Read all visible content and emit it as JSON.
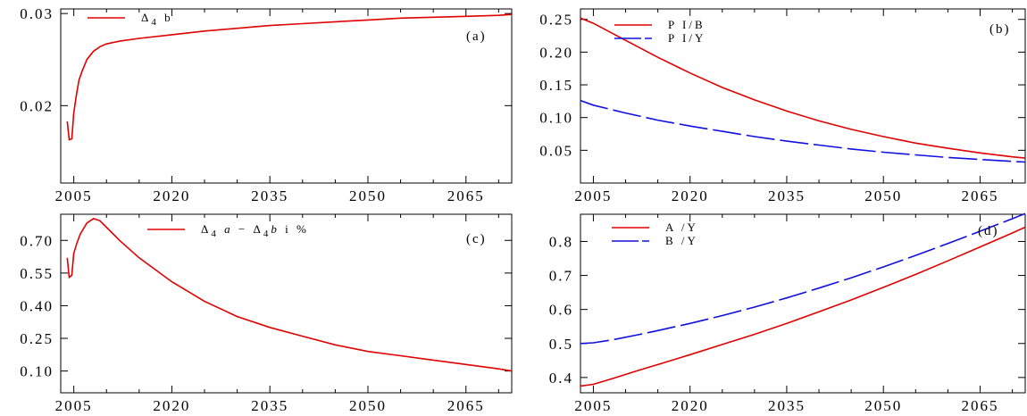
{
  "chart_data": [
    {
      "type": "line",
      "panel_label": "(a)",
      "xlim": [
        2003,
        2072
      ],
      "ylim": [
        0.0116,
        0.0305
      ],
      "x_ticks": [
        2005,
        2020,
        2035,
        2050,
        2065
      ],
      "x_tick_labels": [
        "2005",
        "2020",
        "2035",
        "2050",
        "2065"
      ],
      "y_ticks": [
        0.02,
        0.03
      ],
      "y_tick_labels": [
        "0.02",
        "0.03"
      ],
      "series": [
        {
          "name": "Δ₄b",
          "legend_main": "Δ",
          "legend_sub": "4",
          "legend_tail": "b",
          "color": "#e00000",
          "dash": "solid",
          "x": [
            2004.0,
            2004.3,
            2004.7,
            2005.0,
            2005.4,
            2005.8,
            2006.3,
            2007.0,
            2008.0,
            2009.0,
            2010.0,
            2012.0,
            2015.0,
            2020.0,
            2025.0,
            2030.0,
            2035.0,
            2040.0,
            2045.0,
            2050.0,
            2055.0,
            2060.0,
            2065.0,
            2070.0,
            2072.0
          ],
          "y": [
            0.0183,
            0.0163,
            0.0164,
            0.0192,
            0.0212,
            0.0228,
            0.0238,
            0.025,
            0.0259,
            0.0264,
            0.0267,
            0.027,
            0.0273,
            0.0277,
            0.0281,
            0.0284,
            0.0287,
            0.0289,
            0.0291,
            0.0293,
            0.0295,
            0.0296,
            0.0297,
            0.0298,
            0.0299
          ]
        }
      ],
      "legend": "top-left"
    },
    {
      "type": "line",
      "panel_label": "(b)",
      "xlim": [
        2003,
        2072
      ],
      "ylim": [
        0.0,
        0.266
      ],
      "x_ticks": [
        2005,
        2020,
        2035,
        2050,
        2065
      ],
      "x_tick_labels": [
        "2005",
        "2020",
        "2035",
        "2050",
        "2065"
      ],
      "y_ticks": [
        0.05,
        0.1,
        0.15,
        0.2,
        0.25
      ],
      "y_tick_labels": [
        "0.05",
        "0.10",
        "0.15",
        "0.20",
        "0.25"
      ],
      "series": [
        {
          "name": "PI/B",
          "legend_main": "P I/B",
          "color": "#e00000",
          "dash": "solid",
          "x": [
            2003,
            2005,
            2010,
            2015,
            2020,
            2025,
            2030,
            2035,
            2040,
            2045,
            2050,
            2055,
            2060,
            2065,
            2070,
            2072
          ],
          "y": [
            0.252,
            0.244,
            0.218,
            0.192,
            0.168,
            0.146,
            0.127,
            0.11,
            0.095,
            0.082,
            0.071,
            0.061,
            0.053,
            0.046,
            0.04,
            0.038
          ]
        },
        {
          "name": "PI/Y",
          "legend_main": "P I/Y",
          "color": "#1010e0",
          "dash": "long-dash",
          "x": [
            2003,
            2005,
            2010,
            2015,
            2020,
            2025,
            2030,
            2035,
            2040,
            2045,
            2050,
            2055,
            2060,
            2065,
            2070,
            2072
          ],
          "y": [
            0.126,
            0.119,
            0.107,
            0.096,
            0.087,
            0.079,
            0.071,
            0.064,
            0.058,
            0.052,
            0.047,
            0.043,
            0.039,
            0.036,
            0.033,
            0.032
          ]
        }
      ],
      "legend": "top-left"
    },
    {
      "type": "line",
      "panel_label": "(c)",
      "xlim": [
        2003,
        2072
      ],
      "ylim": [
        0.0,
        0.82
      ],
      "x_ticks": [
        2005,
        2020,
        2035,
        2050,
        2065
      ],
      "x_tick_labels": [
        "2005",
        "2020",
        "2035",
        "2050",
        "2065"
      ],
      "y_ticks": [
        0.1,
        0.25,
        0.4,
        0.55,
        0.7
      ],
      "y_tick_labels": [
        "0.10",
        "0.25",
        "0.40",
        "0.55",
        "0.70"
      ],
      "series": [
        {
          "name": "Δ₄a − Δ₄b i %",
          "legend_parts": [
            "Δ",
            "4",
            "a",
            "−",
            "Δ",
            "4",
            "b",
            "i %"
          ],
          "color": "#e00000",
          "dash": "solid",
          "x": [
            2004.0,
            2004.3,
            2004.7,
            2005.0,
            2005.5,
            2006.0,
            2007.0,
            2008.0,
            2009.0,
            2010.0,
            2011.0,
            2012.0,
            2015.0,
            2020.0,
            2025.0,
            2030.0,
            2035.0,
            2040.0,
            2045.0,
            2050.0,
            2055.0,
            2060.0,
            2065.0,
            2070.0,
            2072.0
          ],
          "y": [
            0.62,
            0.53,
            0.54,
            0.64,
            0.69,
            0.73,
            0.78,
            0.8,
            0.79,
            0.76,
            0.73,
            0.7,
            0.62,
            0.51,
            0.42,
            0.35,
            0.3,
            0.26,
            0.22,
            0.19,
            0.17,
            0.15,
            0.13,
            0.11,
            0.1
          ]
        }
      ],
      "legend": "top-left"
    },
    {
      "type": "line",
      "panel_label": "(d)",
      "xlim": [
        2003,
        2072
      ],
      "ylim": [
        0.355,
        0.88
      ],
      "x_ticks": [
        2005,
        2020,
        2035,
        2050,
        2065
      ],
      "x_tick_labels": [
        "2005",
        "2020",
        "2035",
        "2050",
        "2065"
      ],
      "y_ticks": [
        0.4,
        0.5,
        0.6,
        0.7,
        0.8
      ],
      "y_tick_labels": [
        "0.4",
        "0.5",
        "0.6",
        "0.7",
        "0.8"
      ],
      "series": [
        {
          "name": "A/Y",
          "legend_main": "A /Y",
          "color": "#e00000",
          "dash": "solid",
          "x": [
            2003,
            2005,
            2008,
            2012,
            2015,
            2020,
            2025,
            2030,
            2035,
            2040,
            2045,
            2050,
            2055,
            2060,
            2065,
            2070,
            2072
          ],
          "y": [
            0.375,
            0.38,
            0.397,
            0.421,
            0.438,
            0.467,
            0.497,
            0.527,
            0.559,
            0.593,
            0.628,
            0.665,
            0.703,
            0.743,
            0.784,
            0.825,
            0.842
          ]
        },
        {
          "name": "B/Y",
          "legend_main": "B /Y",
          "color": "#1010e0",
          "dash": "long-dash",
          "x": [
            2003,
            2005,
            2008,
            2012,
            2015,
            2020,
            2025,
            2030,
            2035,
            2040,
            2045,
            2050,
            2055,
            2060,
            2065,
            2070,
            2072
          ],
          "y": [
            0.5,
            0.502,
            0.511,
            0.526,
            0.538,
            0.559,
            0.582,
            0.607,
            0.634,
            0.663,
            0.693,
            0.725,
            0.759,
            0.794,
            0.83,
            0.867,
            0.882
          ]
        }
      ],
      "legend": "top-left"
    }
  ]
}
